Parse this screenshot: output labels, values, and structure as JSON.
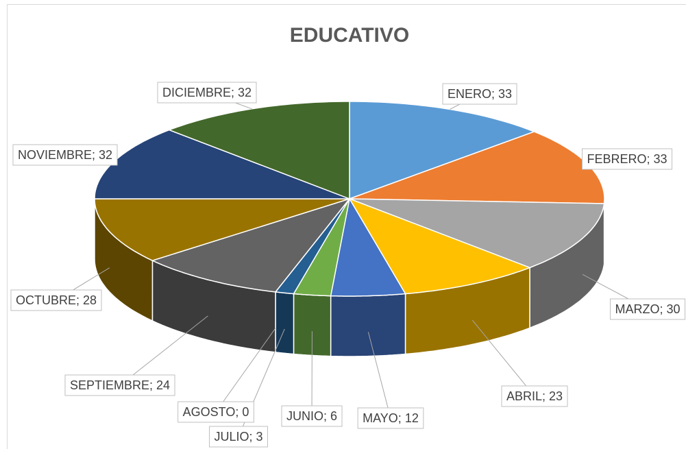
{
  "chart_data": {
    "type": "pie",
    "title": "EDUCATIVO",
    "values": [
      33,
      33,
      30,
      23,
      12,
      6,
      3,
      0,
      24,
      28,
      32,
      32
    ],
    "value_labels": [
      "ENERO; 33",
      "FEBRERO; 33",
      "MARZO; 30",
      "ABRIL; 23",
      "MAYO; 12",
      "JUNIO; 6",
      "JULIO; 3",
      "AGOSTO; 0",
      "SEPTIEMBRE; 24",
      "OCTUBRE; 28",
      "NOVIEMBRE; 32",
      "DICIEMBRE; 32"
    ],
    "colors": [
      "#5b9bd5",
      "#ed7d31",
      "#a5a5a5",
      "#ffc000",
      "#4472c4",
      "#70ad47",
      "#255e91",
      "#9e480e",
      "#636363",
      "#997300",
      "#264478",
      "#43682b"
    ]
  }
}
